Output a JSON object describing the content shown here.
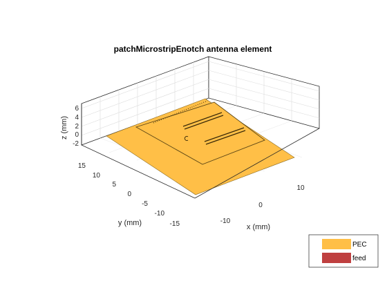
{
  "title": "patchMicrostripEnotch antenna element",
  "axes": {
    "x_label": "x (mm)",
    "y_label": "y (mm)",
    "z_label": "z (mm)",
    "x_ticks": [
      "-10",
      "0",
      "10"
    ],
    "y_ticks": [
      "15",
      "10",
      "5",
      "0",
      "-5",
      "-10",
      "-15"
    ],
    "z_ticks": [
      "6",
      "4",
      "2",
      "0",
      "-2"
    ]
  },
  "legend": {
    "items": [
      {
        "label": "PEC",
        "color": "#FFBF47"
      },
      {
        "label": "feed",
        "color": "#BF3F3F"
      }
    ]
  },
  "colors": {
    "pec": "#FFBF47",
    "feed": "#BF3F3F",
    "grid": "#DCDCDC",
    "box": "#262626"
  }
}
